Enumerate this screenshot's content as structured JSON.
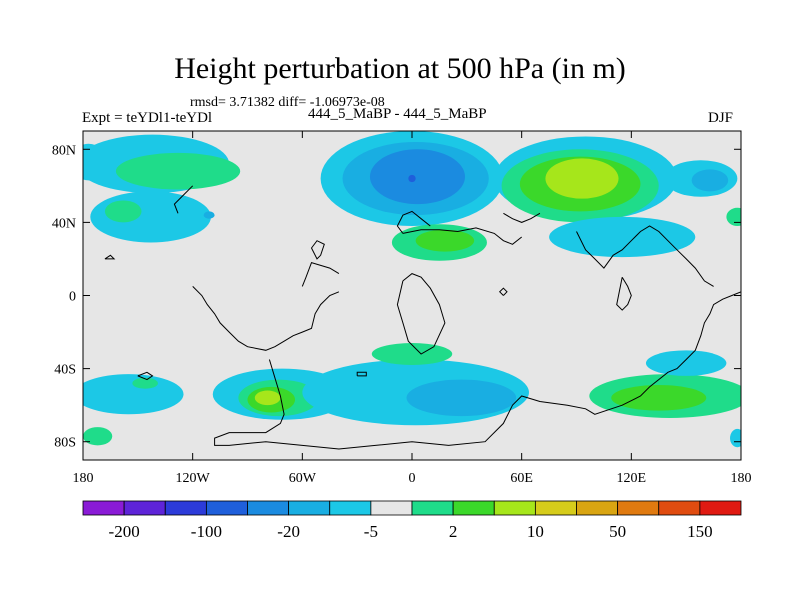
{
  "chart_data": {
    "type": "heatmap",
    "title": "Height perturbation at 500 hPa (in m)",
    "stats_text": "rmsd= 3.71382 diff= -1.06973e-08",
    "left_label": "Expt = teYDl1-teYDl",
    "center_label": "444_5_MaBP - 444_5_MaBP",
    "right_label": "DJF",
    "xlim": [
      -180,
      180
    ],
    "ylim": [
      -90,
      90
    ],
    "x_ticks": [
      {
        "value": -180,
        "label": "180"
      },
      {
        "value": -120,
        "label": "120W"
      },
      {
        "value": -60,
        "label": "60W"
      },
      {
        "value": 0,
        "label": "0"
      },
      {
        "value": 60,
        "label": "60E"
      },
      {
        "value": 120,
        "label": "120E"
      },
      {
        "value": 180,
        "label": "180"
      }
    ],
    "y_ticks": [
      {
        "value": 80,
        "label": "80N"
      },
      {
        "value": 40,
        "label": "40N"
      },
      {
        "value": 0,
        "label": "0"
      },
      {
        "value": -40,
        "label": "40S"
      },
      {
        "value": -80,
        "label": "80S"
      }
    ],
    "background_color": "#e6e6e6",
    "colorbar": {
      "colors": [
        "#8a1bd6",
        "#5e24d8",
        "#2c3bd9",
        "#1f5fdb",
        "#1b8be0",
        "#19aee2",
        "#1cc8e6",
        "#e6e6e6",
        "#1fdc8a",
        "#3bd82a",
        "#a6e61b",
        "#d6cc1b",
        "#d9a512",
        "#e07a10",
        "#e04c10",
        "#e01a12"
      ],
      "tick_labels": [
        "-200",
        "-100",
        "-20",
        "-5",
        "2",
        "10",
        "50",
        "150"
      ]
    },
    "regions": [
      {
        "name": "nw-arctic-cyan",
        "level": 6,
        "lon": -177,
        "lat": 73,
        "rlon": 10,
        "rlat": 10
      },
      {
        "name": "pacific-north-cyan",
        "level": 6,
        "lon": -142,
        "lat": 72,
        "rlon": 42,
        "rlat": 16
      },
      {
        "name": "pacific-north-green",
        "level": 8,
        "lon": -128,
        "lat": 68,
        "rlon": 34,
        "rlat": 10
      },
      {
        "name": "pacific-mid-cyan",
        "level": 6,
        "lon": -143,
        "lat": 43,
        "rlon": 33,
        "rlat": 14
      },
      {
        "name": "pacific-mid-green",
        "level": 8,
        "lon": -158,
        "lat": 46,
        "rlon": 10,
        "rlat": 6
      },
      {
        "name": "pacific-mid-dot",
        "level": 5,
        "lon": -111,
        "lat": 44,
        "rlon": 3,
        "rlat": 2
      },
      {
        "name": "arctic-low-cyan",
        "level": 6,
        "lon": 0,
        "lat": 64,
        "rlon": 50,
        "rlat": 26
      },
      {
        "name": "arctic-low-lightblue",
        "level": 5,
        "lon": 2,
        "lat": 64,
        "rlon": 40,
        "rlat": 20
      },
      {
        "name": "arctic-low-blue",
        "level": 4,
        "lon": 3,
        "lat": 65,
        "rlon": 26,
        "rlat": 15
      },
      {
        "name": "arctic-low-core",
        "level": 3,
        "lon": 0,
        "lat": 64,
        "rlon": 2,
        "rlat": 2
      },
      {
        "name": "europe-green",
        "level": 8,
        "lon": 15,
        "lat": 29,
        "rlon": 26,
        "rlat": 10
      },
      {
        "name": "europe-darkgreen",
        "level": 9,
        "lon": 18,
        "lat": 30,
        "rlon": 16,
        "rlat": 6
      },
      {
        "name": "asia-high-cyan",
        "level": 6,
        "lon": 95,
        "lat": 64,
        "rlon": 50,
        "rlat": 23
      },
      {
        "name": "asia-high-green",
        "level": 8,
        "lon": 92,
        "lat": 60,
        "rlon": 43,
        "rlat": 20
      },
      {
        "name": "asia-high-darkgreen",
        "level": 9,
        "lon": 92,
        "lat": 61,
        "rlon": 33,
        "rlat": 15
      },
      {
        "name": "asia-high-yellowgreen",
        "level": 10,
        "lon": 93,
        "lat": 64,
        "rlon": 20,
        "rlat": 11
      },
      {
        "name": "asia-mid-cyan",
        "level": 6,
        "lon": 115,
        "lat": 32,
        "rlon": 40,
        "rlat": 11
      },
      {
        "name": "pacific-ne-cyan",
        "level": 6,
        "lon": 158,
        "lat": 64,
        "rlon": 20,
        "rlat": 10
      },
      {
        "name": "pacific-ne-blue",
        "level": 5,
        "lon": 163,
        "lat": 63,
        "rlon": 10,
        "rlat": 6
      },
      {
        "name": "east-edge-green",
        "level": 8,
        "lon": 178,
        "lat": 43,
        "rlon": 6,
        "rlat": 5
      },
      {
        "name": "south-america-cyan",
        "level": 6,
        "lon": -71,
        "lat": -54,
        "rlon": 38,
        "rlat": 14
      },
      {
        "name": "south-america-green",
        "level": 8,
        "lon": -73,
        "lat": -56,
        "rlon": 22,
        "rlat": 10
      },
      {
        "name": "south-america-darkgreen",
        "level": 9,
        "lon": -77,
        "lat": -57,
        "rlon": 13,
        "rlat": 7
      },
      {
        "name": "south-america-yellowgreen",
        "level": 10,
        "lon": -79,
        "lat": -56,
        "rlon": 7,
        "rlat": 4
      },
      {
        "name": "south-pacific-cyan",
        "level": 6,
        "lon": -155,
        "lat": -54,
        "rlon": 30,
        "rlat": 11
      },
      {
        "name": "south-pacific-green",
        "level": 8,
        "lon": -146,
        "lat": -48,
        "rlon": 7,
        "rlat": 3
      },
      {
        "name": "south-atlantic-cyan",
        "level": 6,
        "lon": 2,
        "lat": -53,
        "rlon": 62,
        "rlat": 18
      },
      {
        "name": "south-atlantic-blue",
        "level": 5,
        "lon": 27,
        "lat": -56,
        "rlon": 30,
        "rlat": 10
      },
      {
        "name": "south-atlantic-green",
        "level": 8,
        "lon": 0,
        "lat": -32,
        "rlon": 22,
        "rlat": 6
      },
      {
        "name": "south-indian-green",
        "level": 8,
        "lon": 141,
        "lat": -55,
        "rlon": 44,
        "rlat": 12
      },
      {
        "name": "south-indian-darkgreen",
        "level": 9,
        "lon": 135,
        "lat": -56,
        "rlon": 26,
        "rlat": 7
      },
      {
        "name": "south-indian-cyan",
        "level": 6,
        "lon": 150,
        "lat": -37,
        "rlon": 22,
        "rlat": 7
      },
      {
        "name": "sw-edge-green",
        "level": 8,
        "lon": -172,
        "lat": -77,
        "rlon": 8,
        "rlat": 5
      },
      {
        "name": "se-edge-cyan",
        "level": 6,
        "lon": 178,
        "lat": -78,
        "rlon": 4,
        "rlat": 5
      }
    ],
    "coastlines": [
      [
        [
          -120,
          5
        ],
        [
          -115,
          0
        ],
        [
          -112,
          -5
        ],
        [
          -108,
          -10
        ],
        [
          -105,
          -15
        ],
        [
          -100,
          -20
        ],
        [
          -95,
          -25
        ],
        [
          -90,
          -28
        ],
        [
          -80,
          -30
        ],
        [
          -75,
          -28
        ],
        [
          -70,
          -25
        ],
        [
          -65,
          -22
        ],
        [
          -60,
          -20
        ],
        [
          -55,
          -18
        ],
        [
          -53,
          -10
        ],
        [
          -50,
          -5
        ],
        [
          -45,
          0
        ],
        [
          -40,
          2
        ]
      ],
      [
        [
          -78,
          -35
        ],
        [
          -75,
          -45
        ],
        [
          -72,
          -55
        ],
        [
          -70,
          -65
        ],
        [
          -72,
          -70
        ],
        [
          -80,
          -75
        ],
        [
          -100,
          -75
        ],
        [
          -108,
          -78
        ],
        [
          -108,
          -82
        ],
        [
          -100,
          -82
        ],
        [
          -80,
          -80
        ],
        [
          -60,
          -82
        ],
        [
          -40,
          -84
        ],
        [
          -20,
          -82
        ],
        [
          0,
          -80
        ],
        [
          20,
          -82
        ],
        [
          40,
          -80
        ],
        [
          50,
          -70
        ],
        [
          55,
          -60
        ],
        [
          60,
          -55
        ],
        [
          70,
          -58
        ],
        [
          85,
          -60
        ],
        [
          95,
          -62
        ],
        [
          100,
          -65
        ],
        [
          115,
          -60
        ],
        [
          125,
          -55
        ],
        [
          130,
          -50
        ],
        [
          140,
          -42
        ],
        [
          145,
          -40
        ],
        [
          150,
          -35
        ],
        [
          155,
          -30
        ],
        [
          158,
          -22
        ],
        [
          160,
          -15
        ],
        [
          163,
          -10
        ],
        [
          165,
          -5
        ],
        [
          170,
          -2
        ],
        [
          175,
          0
        ],
        [
          180,
          2
        ]
      ],
      [
        [
          -5,
          8
        ],
        [
          0,
          12
        ],
        [
          5,
          10
        ],
        [
          10,
          4
        ],
        [
          15,
          -5
        ],
        [
          18,
          -15
        ],
        [
          12,
          -28
        ],
        [
          5,
          -32
        ],
        [
          -2,
          -25
        ],
        [
          -5,
          -15
        ],
        [
          -8,
          -5
        ],
        [
          -5,
          8
        ]
      ],
      [
        [
          -40,
          12
        ],
        [
          -45,
          15
        ],
        [
          -55,
          18
        ],
        [
          -58,
          10
        ],
        [
          -60,
          5
        ]
      ],
      [
        [
          -50,
          22
        ],
        [
          -48,
          28
        ],
        [
          -52,
          30
        ],
        [
          -55,
          26
        ],
        [
          -52,
          20
        ],
        [
          -50,
          22
        ]
      ],
      [
        [
          -5,
          34
        ],
        [
          5,
          36
        ],
        [
          15,
          36
        ],
        [
          25,
          35
        ],
        [
          35,
          37
        ],
        [
          45,
          34
        ],
        [
          50,
          30
        ],
        [
          55,
          28
        ],
        [
          60,
          32
        ]
      ],
      [
        [
          -5,
          34
        ],
        [
          -8,
          38
        ],
        [
          -5,
          44
        ],
        [
          0,
          46
        ],
        [
          5,
          42
        ],
        [
          10,
          38
        ]
      ],
      [
        [
          90,
          35
        ],
        [
          95,
          25
        ],
        [
          100,
          20
        ],
        [
          105,
          15
        ],
        [
          110,
          22
        ],
        [
          115,
          25
        ],
        [
          120,
          30
        ],
        [
          125,
          35
        ],
        [
          130,
          38
        ],
        [
          135,
          35
        ],
        [
          140,
          30
        ],
        [
          145,
          25
        ],
        [
          150,
          20
        ],
        [
          155,
          15
        ],
        [
          160,
          8
        ],
        [
          165,
          5
        ]
      ],
      [
        [
          115,
          10
        ],
        [
          118,
          5
        ],
        [
          120,
          0
        ],
        [
          118,
          -5
        ],
        [
          115,
          -8
        ],
        [
          112,
          -5
        ],
        [
          115,
          10
        ]
      ],
      [
        [
          -30,
          -44
        ],
        [
          -25,
          -44
        ],
        [
          -25,
          -42
        ],
        [
          -30,
          -42
        ],
        [
          -30,
          -44
        ]
      ],
      [
        [
          -150,
          -44
        ],
        [
          -145,
          -46
        ],
        [
          -142,
          -44
        ],
        [
          -145,
          -42
        ],
        [
          -150,
          -44
        ]
      ],
      [
        [
          -168,
          20
        ],
        [
          -165,
          22
        ],
        [
          -163,
          20
        ],
        [
          -168,
          20
        ]
      ],
      [
        [
          50,
          0
        ],
        [
          52,
          2
        ],
        [
          50,
          4
        ],
        [
          48,
          2
        ],
        [
          50,
          0
        ]
      ],
      [
        [
          -120,
          60
        ],
        [
          -125,
          55
        ],
        [
          -130,
          50
        ],
        [
          -128,
          45
        ]
      ],
      [
        [
          50,
          45
        ],
        [
          55,
          42
        ],
        [
          60,
          40
        ],
        [
          65,
          42
        ],
        [
          70,
          45
        ]
      ]
    ]
  }
}
